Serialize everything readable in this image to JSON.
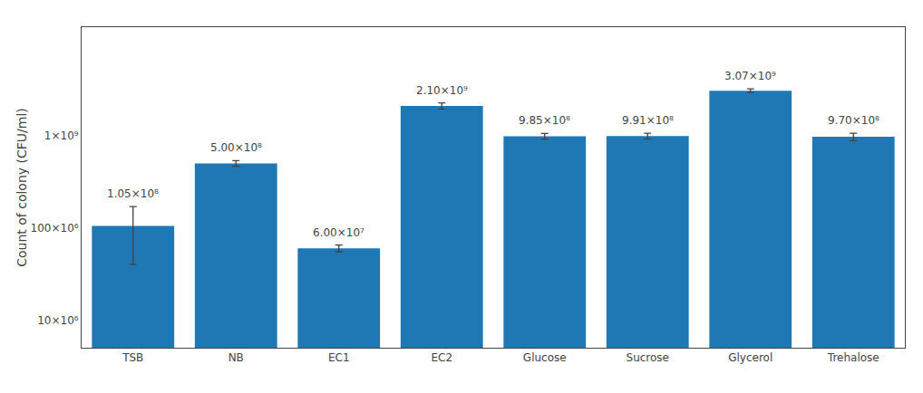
{
  "chart_data": {
    "type": "bar",
    "categories": [
      "TSB",
      "NB",
      "EC1",
      "EC2",
      "Glucose",
      "Sucrose",
      "Glycerol",
      "Trehalose"
    ],
    "values": [
      105000000.0,
      500000000.0,
      60000000.0,
      2100000000.0,
      985000000.0,
      991000000.0,
      3070000000.0,
      970000000.0
    ],
    "errors": [
      65000000.0,
      35000000.0,
      5000000.0,
      160000000.0,
      70000000.0,
      70000000.0,
      140000000.0,
      90000000.0
    ],
    "data_labels": true,
    "value_labels": [
      "1.05×10⁸",
      "5.00×10⁸",
      "6.00×10⁷",
      "2.10×10⁹",
      "9.85×10⁸",
      "9.91×10⁸",
      "3.07×10⁹",
      "9.70×10⁸"
    ],
    "ylabel": "Count of colony (CFU/ml)",
    "log": "y",
    "ylim": [
      5000000.0,
      15000000000.0
    ],
    "yticks": [
      {
        "value": 10000000.0,
        "label": "10×10⁶"
      },
      {
        "value": 100000000.0,
        "label": "100×10⁶"
      },
      {
        "value": 1000000000.0,
        "label": "1×10⁹"
      }
    ],
    "grid": false
  }
}
